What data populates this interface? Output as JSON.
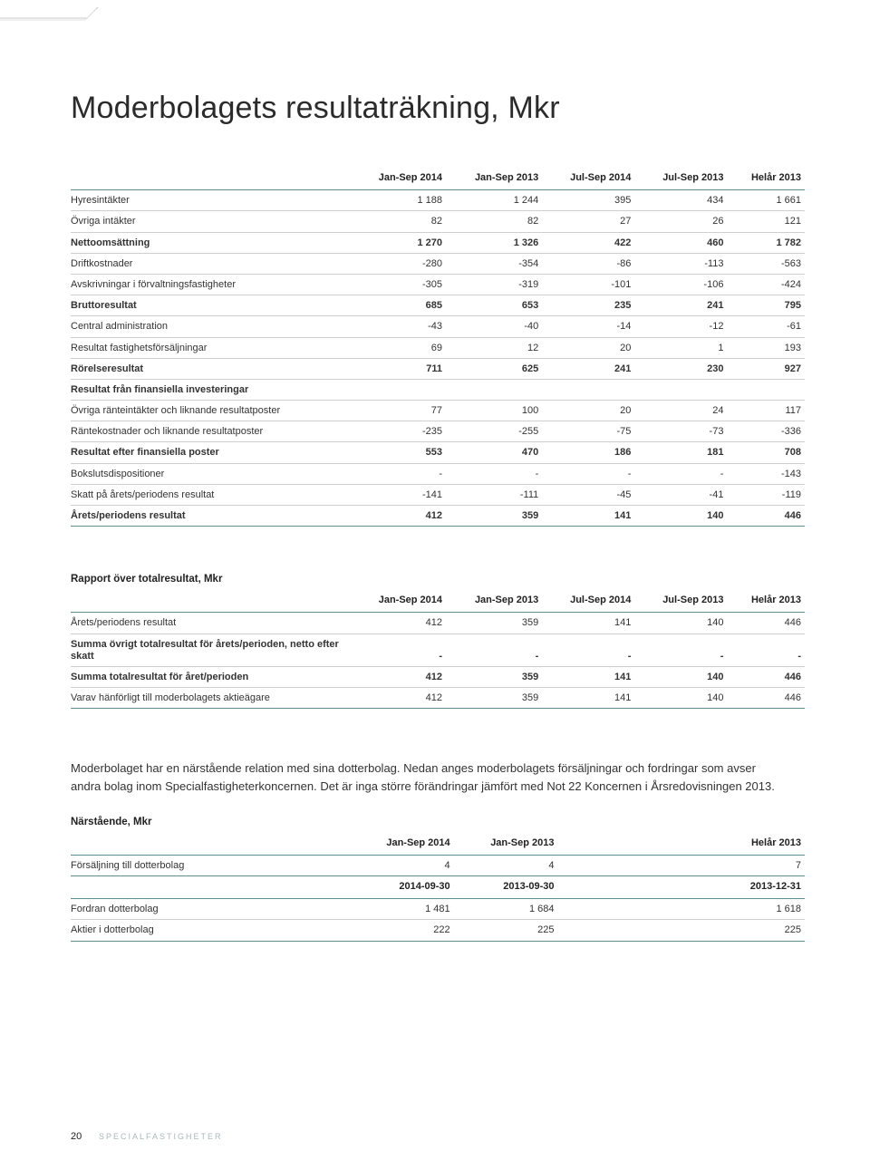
{
  "page_title": "Moderbolagets resultaträkning, Mkr",
  "table1": {
    "columns": [
      "",
      "Jan-Sep 2014",
      "Jan-Sep 2013",
      "Jul-Sep 2014",
      "Jul-Sep 2013",
      "Helår 2013"
    ],
    "rows": [
      {
        "label": "Hyresintäkter",
        "cells": [
          "1 188",
          "1 244",
          "395",
          "434",
          "1 661"
        ],
        "bold": false
      },
      {
        "label": "Övriga intäkter",
        "cells": [
          "82",
          "82",
          "27",
          "26",
          "121"
        ],
        "bold": false
      },
      {
        "label": "Nettoomsättning",
        "cells": [
          "1 270",
          "1 326",
          "422",
          "460",
          "1 782"
        ],
        "bold": true
      },
      {
        "label": "Driftkostnader",
        "cells": [
          "-280",
          "-354",
          "-86",
          "-113",
          "-563"
        ],
        "bold": false
      },
      {
        "label": "Avskrivningar i förvaltningsfastigheter",
        "cells": [
          "-305",
          "-319",
          "-101",
          "-106",
          "-424"
        ],
        "bold": false
      },
      {
        "label": "Bruttoresultat",
        "cells": [
          "685",
          "653",
          "235",
          "241",
          "795"
        ],
        "bold": true
      },
      {
        "label": "Central administration",
        "cells": [
          "-43",
          "-40",
          "-14",
          "-12",
          "-61"
        ],
        "bold": false
      },
      {
        "label": "Resultat fastighetsförsäljningar",
        "cells": [
          "69",
          "12",
          "20",
          "1",
          "193"
        ],
        "bold": false
      },
      {
        "label": "Rörelseresultat",
        "cells": [
          "711",
          "625",
          "241",
          "230",
          "927"
        ],
        "bold": true
      },
      {
        "label": "Resultat från finansiella investeringar",
        "cells": [
          "",
          "",
          "",
          "",
          ""
        ],
        "bold": true,
        "section": true
      },
      {
        "label": "Övriga ränteintäkter och liknande resultatposter",
        "cells": [
          "77",
          "100",
          "20",
          "24",
          "117"
        ],
        "bold": false
      },
      {
        "label": "Räntekostnader och liknande resultatposter",
        "cells": [
          "-235",
          "-255",
          "-75",
          "-73",
          "-336"
        ],
        "bold": false
      },
      {
        "label": "Resultat efter finansiella poster",
        "cells": [
          "553",
          "470",
          "186",
          "181",
          "708"
        ],
        "bold": true
      },
      {
        "label": "Bokslutsdispositioner",
        "cells": [
          "-",
          "-",
          "-",
          "-",
          "-143"
        ],
        "bold": false
      },
      {
        "label": "Skatt på årets/periodens resultat",
        "cells": [
          "-141",
          "-111",
          "-45",
          "-41",
          "-119"
        ],
        "bold": false
      },
      {
        "label": "Årets/periodens resultat",
        "cells": [
          "412",
          "359",
          "141",
          "140",
          "446"
        ],
        "bold": true
      }
    ]
  },
  "table2": {
    "title": "Rapport över totalresultat, Mkr",
    "columns": [
      "",
      "Jan-Sep 2014",
      "Jan-Sep 2013",
      "Jul-Sep 2014",
      "Jul-Sep 2013",
      "Helår 2013"
    ],
    "rows": [
      {
        "label": "Årets/periodens resultat",
        "cells": [
          "412",
          "359",
          "141",
          "140",
          "446"
        ],
        "bold": false
      },
      {
        "label": "Summa övrigt totalresultat för årets/perioden, netto efter skatt",
        "cells": [
          "-",
          "-",
          "-",
          "-",
          "-"
        ],
        "bold": true
      },
      {
        "label": "Summa totalresultat för året/perioden",
        "cells": [
          "412",
          "359",
          "141",
          "140",
          "446"
        ],
        "bold": true
      },
      {
        "label": "Varav hänförligt till moderbolagets aktieägare",
        "cells": [
          "412",
          "359",
          "141",
          "140",
          "446"
        ],
        "bold": false
      }
    ]
  },
  "body_text": "Moderbolaget har en närstående relation med sina dotterbolag. Nedan anges moderbolagets försäljningar och fordringar som avser andra bolag inom Specialfastigheterkoncernen. Det är inga större förändringar jämfört med Not 22 Koncernen i Årsredovisningen 2013.",
  "table3": {
    "title": "Närstående, Mkr",
    "header1": [
      "",
      "Jan-Sep 2014",
      "Jan-Sep 2013",
      "",
      "Helår 2013"
    ],
    "rows1": [
      {
        "label": "Försäljning till dotterbolag",
        "cells": [
          "4",
          "4",
          "",
          "7"
        ],
        "bold": false
      }
    ],
    "header2": [
      "",
      "2014-09-30",
      "2013-09-30",
      "",
      "2013-12-31"
    ],
    "rows2": [
      {
        "label": "Fordran dotterbolag",
        "cells": [
          "1 481",
          "1 684",
          "",
          "1 618"
        ],
        "bold": false
      },
      {
        "label": "Aktier i dotterbolag",
        "cells": [
          "222",
          "225",
          "",
          "225"
        ],
        "bold": false
      }
    ]
  },
  "footer": {
    "page_number": "20",
    "brand": "SPECIALFASTIGHETER"
  },
  "colors": {
    "rule_strong": "#5f8b91",
    "rule_light": "#d0cfcf",
    "text": "#333333",
    "brand_faded": "#a9b9bb"
  }
}
